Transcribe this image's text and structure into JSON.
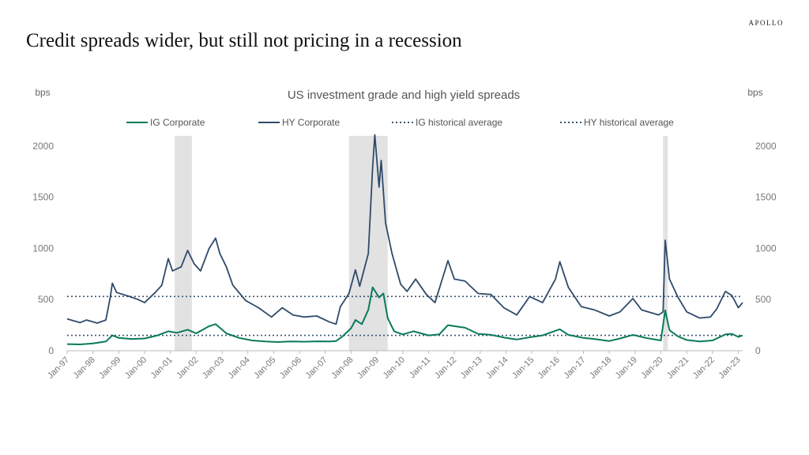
{
  "brand": "APOLLO",
  "page_title": "Credit spreads wider, but still not pricing in a recession",
  "colors": {
    "ig": "#0a7a5a",
    "hy": "#2f4a6a",
    "avg": "#3d556e",
    "recession": "#e2e2e2",
    "tick_text": "#777777"
  },
  "chart_data": {
    "type": "line",
    "title": "US investment grade and high yield spreads",
    "ylabel_left": "bps",
    "ylabel_right": "bps",
    "ylim": [
      0,
      2100
    ],
    "y_ticks": [
      0,
      500,
      1000,
      1500,
      2000
    ],
    "x_range": [
      "1997-01",
      "2023-03"
    ],
    "x_ticks": [
      "Jan-97",
      "Jan-98",
      "Jan-99",
      "Jan-00",
      "Jan-01",
      "Jan-02",
      "Jan-03",
      "Jan-04",
      "Jan-05",
      "Jan-06",
      "Jan-07",
      "Jan-08",
      "Jan-09",
      "Jan-10",
      "Jan-11",
      "Jan-12",
      "Jan-13",
      "Jan-14",
      "Jan-15",
      "Jan-16",
      "Jan-17",
      "Jan-18",
      "Jan-19",
      "Jan-20",
      "Jan-21",
      "Jan-22",
      "Jan-23"
    ],
    "legend_position": "top",
    "recession_periods": [
      {
        "start": "2001-03",
        "end": "2001-11"
      },
      {
        "start": "2007-12",
        "end": "2009-06"
      },
      {
        "start": "2020-02",
        "end": "2020-04"
      }
    ],
    "series": [
      {
        "name": "IG Corporate",
        "points": [
          [
            "1997-01",
            65
          ],
          [
            "1997-07",
            62
          ],
          [
            "1998-01",
            72
          ],
          [
            "1998-07",
            90
          ],
          [
            "1998-10",
            150
          ],
          [
            "1999-01",
            125
          ],
          [
            "1999-07",
            115
          ],
          [
            "2000-01",
            120
          ],
          [
            "2000-07",
            150
          ],
          [
            "2000-12",
            190
          ],
          [
            "2001-04",
            175
          ],
          [
            "2001-09",
            205
          ],
          [
            "2002-01",
            170
          ],
          [
            "2002-07",
            240
          ],
          [
            "2002-10",
            260
          ],
          [
            "2003-03",
            170
          ],
          [
            "2003-09",
            125
          ],
          [
            "2004-03",
            100
          ],
          [
            "2004-09",
            90
          ],
          [
            "2005-03",
            85
          ],
          [
            "2005-09",
            90
          ],
          [
            "2006-03",
            88
          ],
          [
            "2006-09",
            92
          ],
          [
            "2007-03",
            90
          ],
          [
            "2007-06",
            95
          ],
          [
            "2007-09",
            140
          ],
          [
            "2008-01",
            220
          ],
          [
            "2008-03",
            300
          ],
          [
            "2008-06",
            260
          ],
          [
            "2008-09",
            400
          ],
          [
            "2008-11",
            620
          ],
          [
            "2009-02",
            520
          ],
          [
            "2009-04",
            560
          ],
          [
            "2009-06",
            320
          ],
          [
            "2009-09",
            190
          ],
          [
            "2010-01",
            160
          ],
          [
            "2010-06",
            190
          ],
          [
            "2011-01",
            150
          ],
          [
            "2011-06",
            160
          ],
          [
            "2011-10",
            250
          ],
          [
            "2012-01",
            240
          ],
          [
            "2012-06",
            225
          ],
          [
            "2012-12",
            165
          ],
          [
            "2013-06",
            155
          ],
          [
            "2014-01",
            125
          ],
          [
            "2014-06",
            110
          ],
          [
            "2015-01",
            135
          ],
          [
            "2015-06",
            150
          ],
          [
            "2016-02",
            210
          ],
          [
            "2016-06",
            155
          ],
          [
            "2017-01",
            125
          ],
          [
            "2017-06",
            115
          ],
          [
            "2018-01",
            95
          ],
          [
            "2018-06",
            120
          ],
          [
            "2018-12",
            155
          ],
          [
            "2019-06",
            125
          ],
          [
            "2020-01",
            100
          ],
          [
            "2020-03",
            395
          ],
          [
            "2020-05",
            200
          ],
          [
            "2020-09",
            140
          ],
          [
            "2021-01",
            105
          ],
          [
            "2021-07",
            90
          ],
          [
            "2022-01",
            100
          ],
          [
            "2022-07",
            160
          ],
          [
            "2022-10",
            165
          ],
          [
            "2023-01",
            135
          ],
          [
            "2023-03",
            150
          ]
        ]
      },
      {
        "name": "HY Corporate",
        "points": [
          [
            "1997-01",
            310
          ],
          [
            "1997-07",
            275
          ],
          [
            "1997-10",
            300
          ],
          [
            "1998-03",
            270
          ],
          [
            "1998-07",
            300
          ],
          [
            "1998-09",
            520
          ],
          [
            "1998-10",
            660
          ],
          [
            "1998-12",
            570
          ],
          [
            "1999-06",
            530
          ],
          [
            "1999-10",
            500
          ],
          [
            "2000-01",
            470
          ],
          [
            "2000-06",
            570
          ],
          [
            "2000-09",
            640
          ],
          [
            "2000-12",
            900
          ],
          [
            "2001-02",
            780
          ],
          [
            "2001-06",
            820
          ],
          [
            "2001-09",
            980
          ],
          [
            "2001-12",
            850
          ],
          [
            "2002-03",
            780
          ],
          [
            "2002-07",
            1000
          ],
          [
            "2002-10",
            1100
          ],
          [
            "2002-12",
            950
          ],
          [
            "2003-03",
            820
          ],
          [
            "2003-06",
            640
          ],
          [
            "2003-12",
            490
          ],
          [
            "2004-06",
            420
          ],
          [
            "2004-12",
            330
          ],
          [
            "2005-05",
            420
          ],
          [
            "2005-10",
            350
          ],
          [
            "2006-03",
            330
          ],
          [
            "2006-09",
            340
          ],
          [
            "2007-03",
            280
          ],
          [
            "2007-06",
            260
          ],
          [
            "2007-08",
            430
          ],
          [
            "2007-12",
            560
          ],
          [
            "2008-03",
            790
          ],
          [
            "2008-05",
            630
          ],
          [
            "2008-09",
            950
          ],
          [
            "2008-11",
            1800
          ],
          [
            "2008-12",
            2110
          ],
          [
            "2009-02",
            1600
          ],
          [
            "2009-03",
            1860
          ],
          [
            "2009-05",
            1250
          ],
          [
            "2009-08",
            950
          ],
          [
            "2009-12",
            650
          ],
          [
            "2010-03",
            580
          ],
          [
            "2010-07",
            700
          ],
          [
            "2010-12",
            550
          ],
          [
            "2011-04",
            470
          ],
          [
            "2011-10",
            880
          ],
          [
            "2012-01",
            700
          ],
          [
            "2012-06",
            680
          ],
          [
            "2012-12",
            560
          ],
          [
            "2013-06",
            550
          ],
          [
            "2013-12",
            420
          ],
          [
            "2014-06",
            350
          ],
          [
            "2014-12",
            530
          ],
          [
            "2015-06",
            470
          ],
          [
            "2015-12",
            700
          ],
          [
            "2016-02",
            870
          ],
          [
            "2016-06",
            620
          ],
          [
            "2016-12",
            430
          ],
          [
            "2017-06",
            400
          ],
          [
            "2018-01",
            340
          ],
          [
            "2018-06",
            380
          ],
          [
            "2018-12",
            510
          ],
          [
            "2019-04",
            400
          ],
          [
            "2019-12",
            350
          ],
          [
            "2020-02",
            380
          ],
          [
            "2020-03",
            1080
          ],
          [
            "2020-05",
            700
          ],
          [
            "2020-09",
            520
          ],
          [
            "2021-01",
            380
          ],
          [
            "2021-07",
            320
          ],
          [
            "2021-12",
            330
          ],
          [
            "2022-03",
            410
          ],
          [
            "2022-07",
            580
          ],
          [
            "2022-10",
            540
          ],
          [
            "2023-01",
            420
          ],
          [
            "2023-03",
            470
          ]
        ]
      },
      {
        "name": "IG historical average",
        "value": 150
      },
      {
        "name": "HY historical average",
        "value": 530
      }
    ]
  }
}
